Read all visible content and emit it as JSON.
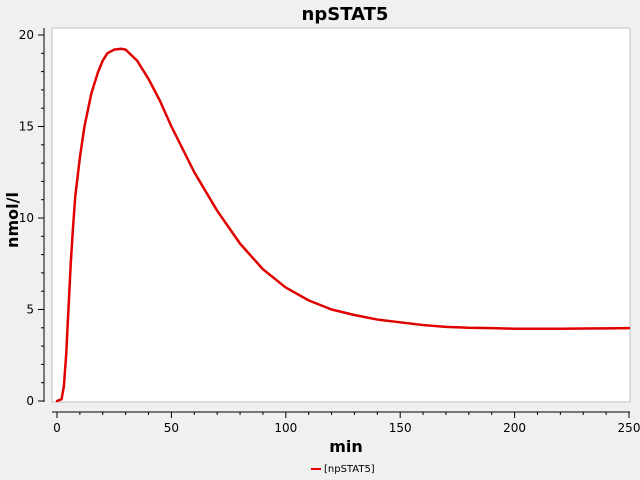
{
  "chart_data": {
    "type": "line",
    "title": "npSTAT5",
    "xlabel": "min",
    "ylabel": "nmol/l",
    "xlim": [
      0,
      250
    ],
    "ylim": [
      0,
      20
    ],
    "xticks": [
      0,
      50,
      100,
      150,
      200,
      250
    ],
    "yticks": [
      0,
      5,
      10,
      15,
      20
    ],
    "grid": false,
    "legend_position": "bottom-center",
    "series": [
      {
        "name": "[npSTAT5]",
        "color": "#e00000",
        "x": [
          0,
          2,
          3,
          4,
          5,
          6,
          7,
          8,
          10,
          12,
          15,
          18,
          20,
          22,
          25,
          28,
          30,
          35,
          40,
          45,
          50,
          60,
          70,
          80,
          90,
          100,
          110,
          120,
          130,
          140,
          150,
          160,
          170,
          180,
          190,
          200,
          210,
          220,
          230,
          240,
          250
        ],
        "y": [
          0,
          0.1,
          0.8,
          2.5,
          5.0,
          7.5,
          9.5,
          11.2,
          13.3,
          15.0,
          16.8,
          18.0,
          18.6,
          19.0,
          19.2,
          19.25,
          19.2,
          18.6,
          17.6,
          16.4,
          15.0,
          12.5,
          10.4,
          8.6,
          7.2,
          6.2,
          5.5,
          5.0,
          4.7,
          4.45,
          4.3,
          4.15,
          4.05,
          4.0,
          3.98,
          3.95,
          3.95,
          3.95,
          3.96,
          3.97,
          3.98
        ]
      }
    ]
  }
}
